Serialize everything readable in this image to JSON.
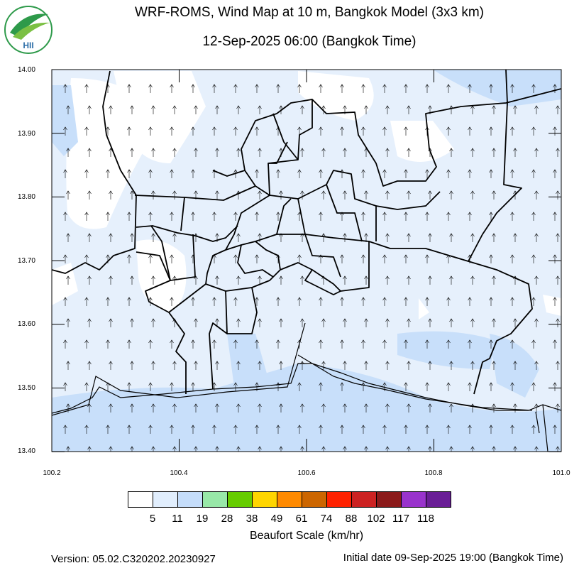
{
  "header": {
    "title": "WRF-ROMS, Wind Map at 10 m, Bangkok Model (3x3 km)",
    "subtitle": "12-Sep-2025 06:00 (Bangkok Time)",
    "logo_text": "HII"
  },
  "map": {
    "y_ticks": [
      "14.00",
      "13.90",
      "13.80",
      "13.70",
      "13.60",
      "13.50",
      "13.40"
    ],
    "x_ticks": [
      "100.2",
      "100.4",
      "100.6",
      "100.8",
      "101.0"
    ],
    "wind_direction": "north",
    "land_fill": "#e6f0fc",
    "sea_fill": "#c8dffa"
  },
  "colorbar": {
    "title": "Beaufort Scale (km/hr)",
    "colors": [
      "#ffffff",
      "#e1eefd",
      "#c5ddfa",
      "#98e8a8",
      "#66cc00",
      "#ffd500",
      "#ff8a00",
      "#cc6600",
      "#ff2200",
      "#cc2222",
      "#8b1a1a",
      "#9933cc",
      "#6a1e96"
    ],
    "labels": [
      "5",
      "11",
      "19",
      "28",
      "38",
      "49",
      "61",
      "74",
      "88",
      "102",
      "117",
      "118"
    ]
  },
  "footer": {
    "version": "Version: 05.02.C320202.20230927",
    "initial_date": "Initial date 09-Sep-2025 19:00 (Bangkok Time)"
  }
}
